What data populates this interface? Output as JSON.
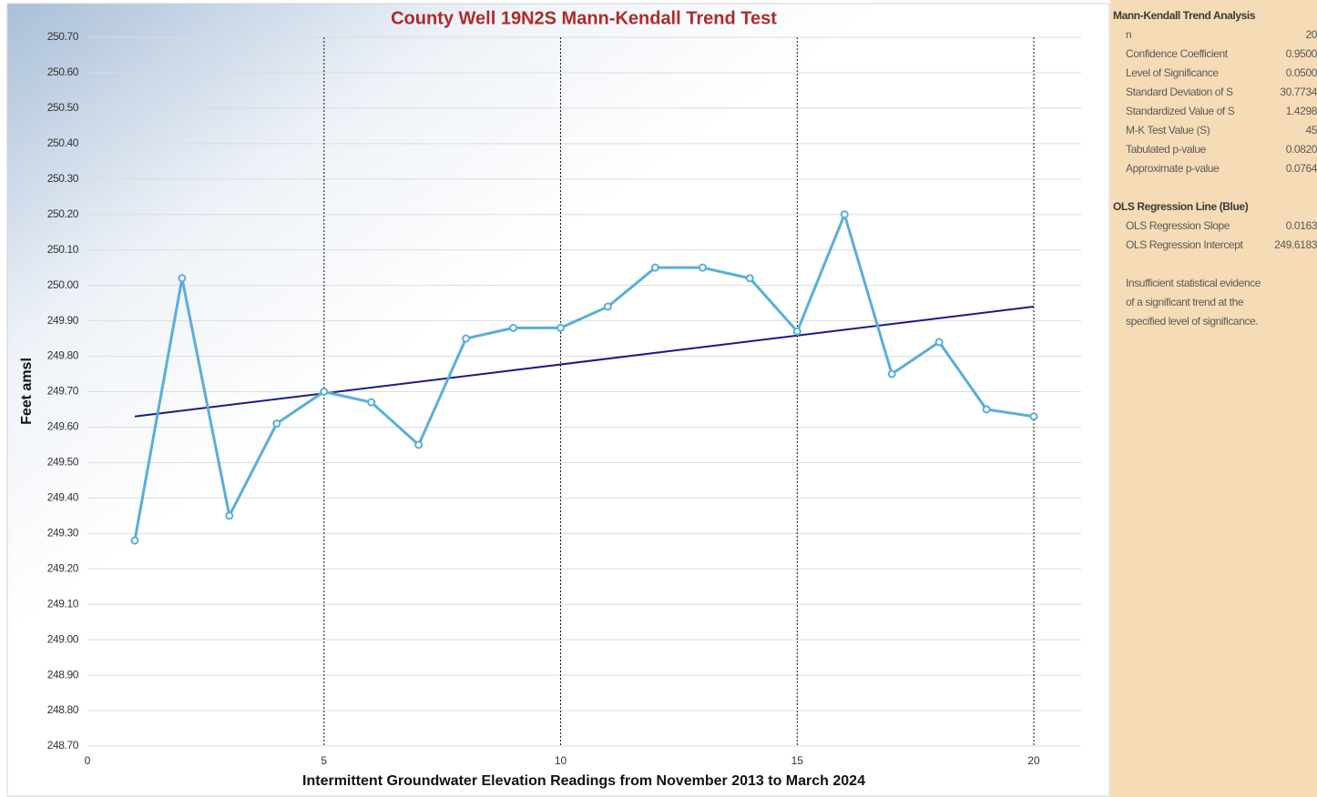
{
  "chart_data": {
    "type": "line",
    "title": "County Well 19N2S Mann-Kendall Trend Test",
    "x_label": "Intermittent Groundwater Elevation Readings from November 2013 to March 2024",
    "y_label": "Feet amsl",
    "x": [
      1,
      2,
      3,
      4,
      5,
      6,
      7,
      8,
      9,
      10,
      11,
      12,
      13,
      14,
      15,
      16,
      17,
      18,
      19,
      20
    ],
    "series": [
      {
        "color": "#5aaed9",
        "values": [
          249.28,
          250.02,
          249.35,
          249.61,
          249.7,
          249.67,
          249.55,
          249.85,
          249.88,
          249.88,
          249.94,
          250.05,
          250.05,
          250.02,
          249.87,
          250.2,
          249.75,
          249.84,
          249.65,
          249.63
        ]
      }
    ],
    "regression": {
      "color": "#1c1a8a",
      "x": [
        1,
        20
      ],
      "values": [
        249.63,
        249.94
      ]
    },
    "xlim": [
      0,
      21
    ],
    "xticks": [
      0,
      5,
      10,
      15,
      20
    ],
    "ylim": [
      248.7,
      250.7
    ],
    "yticks": [
      {
        "value": 248.7,
        "label": "248.70"
      },
      {
        "value": 248.8,
        "label": "248.80"
      },
      {
        "value": 248.9,
        "label": "248.90"
      },
      {
        "value": 249.0,
        "label": "249.00"
      },
      {
        "value": 249.1,
        "label": "249.10"
      },
      {
        "value": 249.2,
        "label": "249.20"
      },
      {
        "value": 249.3,
        "label": "249.30"
      },
      {
        "value": 249.4,
        "label": "249.40"
      },
      {
        "value": 249.5,
        "label": "249.50"
      },
      {
        "value": 249.6,
        "label": "249.60"
      },
      {
        "value": 249.7,
        "label": "249.70"
      },
      {
        "value": 249.8,
        "label": "249.80"
      },
      {
        "value": 249.9,
        "label": "249.90"
      },
      {
        "value": 250.0,
        "label": "250.00"
      },
      {
        "value": 250.1,
        "label": "250.10"
      },
      {
        "value": 250.2,
        "label": "250.20"
      },
      {
        "value": 250.3,
        "label": "250.30"
      },
      {
        "value": 250.4,
        "label": "250.40"
      },
      {
        "value": 250.5,
        "label": "250.50"
      },
      {
        "value": 250.6,
        "label": "250.60"
      },
      {
        "value": 250.7,
        "label": "250.70"
      }
    ],
    "grid": true,
    "x_grid": true
  },
  "stats_panel": {
    "sections": [
      {
        "title": "Mann-Kendall Trend Analysis",
        "rows": [
          [
            "n",
            "20"
          ],
          [
            "Confidence Coefficient",
            "0.9500"
          ],
          [
            "Level of Significance",
            "0.0500"
          ],
          [
            "Standard Deviation of S",
            "30.7734"
          ],
          [
            "Standardized Value of S",
            "1.4298"
          ],
          [
            "M-K Test Value (S)",
            "45"
          ],
          [
            "Tabulated p-value",
            "0.0820"
          ],
          [
            "Approximate p-value",
            "0.0764"
          ]
        ]
      },
      {
        "title": "OLS Regression Line (Blue)",
        "rows": [
          [
            "OLS Regression Slope",
            "0.0163"
          ],
          [
            "OLS Regression Intercept",
            "249.6183"
          ]
        ]
      }
    ],
    "note": [
      "Insufficient statistical evidence",
      "of a significant trend at the",
      "specified level of significance."
    ]
  }
}
